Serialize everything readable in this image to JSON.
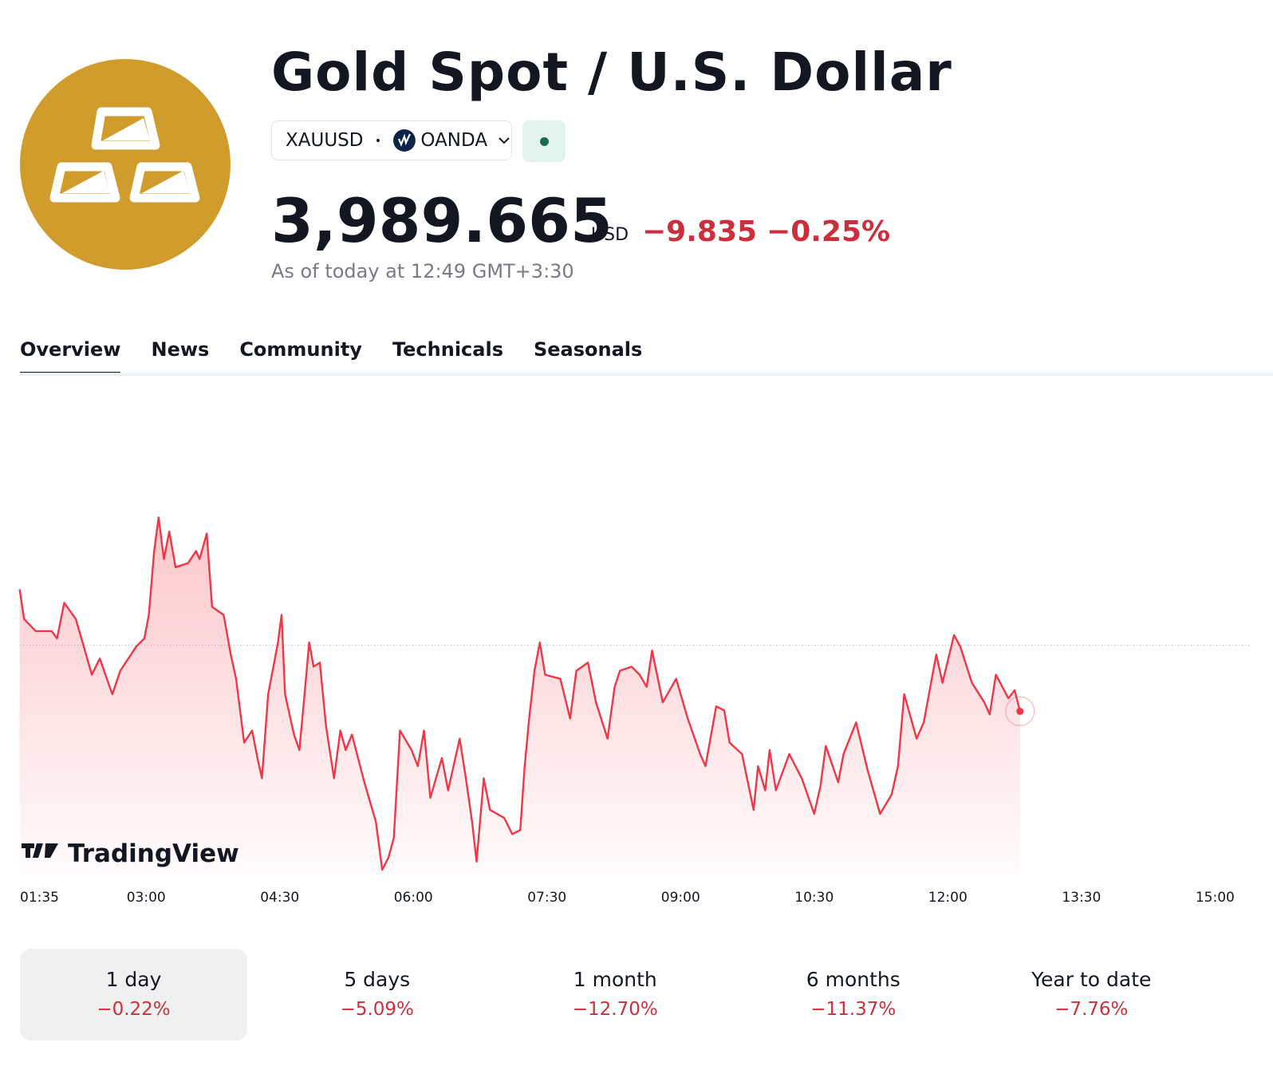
{
  "header": {
    "title": "Gold Spot / U.S. Dollar",
    "symbol": "XAUUSD",
    "exchange": "OANDA",
    "price": "3,989.665",
    "currency": "USD",
    "change": "−9.835",
    "change_percent": "−0.25%",
    "timestamp": "As of today at 12:49 GMT+3:30"
  },
  "tabs": [
    "Overview",
    "News",
    "Community",
    "Technicals",
    "Seasonals"
  ],
  "chart_data": {
    "type": "line",
    "color": "#f23645",
    "watermark": "TradingView",
    "reference_line": 3999.5,
    "x": [
      1.58,
      1.63,
      1.76,
      1.94,
      2.0,
      2.08,
      2.21,
      2.3,
      2.39,
      2.48,
      2.62,
      2.71,
      2.89,
      2.98,
      3.03,
      3.09,
      3.14,
      3.2,
      3.26,
      3.33,
      3.47,
      3.56,
      3.6,
      3.68,
      3.74,
      3.87,
      3.95,
      4.01,
      4.1,
      4.19,
      4.25,
      4.3,
      4.37,
      4.48,
      4.52,
      4.56,
      4.66,
      4.72,
      4.77,
      4.83,
      4.88,
      4.95,
      5.02,
      5.11,
      5.18,
      5.24,
      5.31,
      5.45,
      5.58,
      5.65,
      5.72,
      5.78,
      5.85,
      5.98,
      6.05,
      6.12,
      6.19,
      6.32,
      6.39,
      6.52,
      6.59,
      6.66,
      6.71,
      6.79,
      6.86,
      7.02,
      7.11,
      7.2,
      7.25,
      7.3,
      7.36,
      7.42,
      7.48,
      7.65,
      7.76,
      7.83,
      7.96,
      8.05,
      8.18,
      8.26,
      8.32,
      8.45,
      8.54,
      8.62,
      8.68,
      8.8,
      8.95,
      9.08,
      9.22,
      9.28,
      9.4,
      9.49,
      9.55,
      9.69,
      9.82,
      9.87,
      9.95,
      10.0,
      10.07,
      10.22,
      10.36,
      10.5,
      10.57,
      10.63,
      10.77,
      10.83,
      10.97,
      11.1,
      11.24,
      11.37,
      11.44,
      11.51,
      11.65,
      11.73,
      11.87,
      11.94,
      12.07,
      12.14,
      12.27,
      12.41,
      12.47,
      12.54,
      12.68,
      12.75,
      12.81
    ],
    "values": [
      4007.8,
      4003.4,
      4001.6,
      4001.6,
      4000.5,
      4005.8,
      4003.4,
      3999.3,
      3995.1,
      3997.5,
      3992.2,
      3995.7,
      3999.3,
      4000.5,
      4004.0,
      4013.5,
      4018.5,
      4012.3,
      4016.4,
      4011.1,
      4011.7,
      4013.5,
      4012.3,
      4016.1,
      4005.2,
      4004.0,
      3998.1,
      3994.5,
      3985.0,
      3986.8,
      3982.7,
      3979.7,
      3992.2,
      3999.9,
      4004.0,
      3992.2,
      3986.2,
      3983.9,
      3991.0,
      3999.9,
      3996.3,
      3996.9,
      3987.4,
      3979.7,
      3986.8,
      3983.9,
      3986.2,
      3979.1,
      3973.2,
      3966.1,
      3967.9,
      3970.8,
      3986.8,
      3983.9,
      3981.5,
      3986.8,
      3976.8,
      3982.7,
      3977.9,
      3985.6,
      3979.7,
      3973.2,
      3967.3,
      3979.7,
      3975.0,
      3973.8,
      3971.4,
      3972.0,
      3981.5,
      3988.6,
      3995.7,
      3999.9,
      3995.1,
      3994.5,
      3988.6,
      3995.7,
      3996.9,
      3991.0,
      3985.6,
      3993.3,
      3995.7,
      3996.3,
      3995.1,
      3993.3,
      3998.7,
      3991.0,
      3994.5,
      3988.6,
      3983.3,
      3981.5,
      3990.4,
      3989.8,
      3985.0,
      3983.3,
      3975.0,
      3981.5,
      3977.9,
      3983.9,
      3977.9,
      3983.3,
      3979.7,
      3974.4,
      3978.5,
      3984.5,
      3979.1,
      3983.3,
      3988.0,
      3980.9,
      3974.4,
      3977.3,
      3981.5,
      3992.2,
      3985.6,
      3988.0,
      3998.1,
      3993.9,
      4001.0,
      3999.3,
      3993.9,
      3991.0,
      3989.2,
      3995.1,
      3991.6,
      3992.8,
      3989.665
    ],
    "xlim": [
      1.5833,
      15.4
    ],
    "ylim": [
      3965.5,
      4029
    ],
    "xticks": [
      {
        "value": 1.5833,
        "label": "01:35"
      },
      {
        "value": 3,
        "label": "03:00"
      },
      {
        "value": 4.5,
        "label": "04:30"
      },
      {
        "value": 6,
        "label": "06:00"
      },
      {
        "value": 7.5,
        "label": "07:30"
      },
      {
        "value": 9,
        "label": "09:00"
      },
      {
        "value": 10.5,
        "label": "10:30"
      },
      {
        "value": 12,
        "label": "12:00"
      },
      {
        "value": 13.5,
        "label": "13:30"
      },
      {
        "value": 15,
        "label": "15:00"
      }
    ]
  },
  "periods": [
    {
      "label": "1 day",
      "change": "−0.22%"
    },
    {
      "label": "5 days",
      "change": "−5.09%"
    },
    {
      "label": "1 month",
      "change": "−12.70%"
    },
    {
      "label": "6 months",
      "change": "−11.37%"
    },
    {
      "label": "Year to date",
      "change": "−7.76%"
    }
  ]
}
